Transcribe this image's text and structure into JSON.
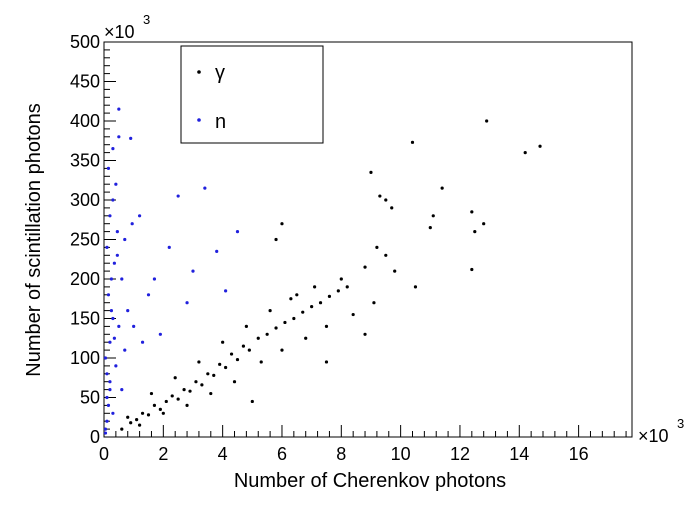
{
  "chart_data": {
    "type": "scatter",
    "xlabel": "Number of Cherenkov photons",
    "ylabel": "Number of scintillation photons",
    "x_multiplier": "×10",
    "x_multiplier_exp": "3",
    "y_multiplier": "×10",
    "y_multiplier_exp": "3",
    "xlim": [
      0,
      17.8
    ],
    "ylim": [
      0,
      500
    ],
    "x_ticks": [
      0,
      2,
      4,
      6,
      8,
      10,
      12,
      14,
      16
    ],
    "y_ticks": [
      0,
      50,
      100,
      150,
      200,
      250,
      300,
      350,
      400,
      450,
      500
    ],
    "legend_position": "top-left",
    "grid": false,
    "series": [
      {
        "name": "γ",
        "color": "#000000",
        "values": [
          [
            0.6,
            10
          ],
          [
            0.9,
            18
          ],
          [
            1.1,
            22
          ],
          [
            1.3,
            30
          ],
          [
            1.5,
            28
          ],
          [
            1.7,
            40
          ],
          [
            1.9,
            35
          ],
          [
            2.1,
            45
          ],
          [
            2.3,
            52
          ],
          [
            2.5,
            48
          ],
          [
            2.7,
            60
          ],
          [
            2.9,
            58
          ],
          [
            3.1,
            70
          ],
          [
            3.3,
            66
          ],
          [
            3.5,
            80
          ],
          [
            3.7,
            78
          ],
          [
            3.9,
            92
          ],
          [
            4.1,
            88
          ],
          [
            4.3,
            105
          ],
          [
            4.5,
            98
          ],
          [
            4.7,
            115
          ],
          [
            4.9,
            110
          ],
          [
            5.2,
            125
          ],
          [
            5.5,
            130
          ],
          [
            5.8,
            138
          ],
          [
            6.1,
            145
          ],
          [
            6.4,
            150
          ],
          [
            6.7,
            158
          ],
          [
            7.0,
            165
          ],
          [
            7.3,
            170
          ],
          [
            7.6,
            178
          ],
          [
            7.9,
            185
          ],
          [
            8.2,
            190
          ],
          [
            0.8,
            25
          ],
          [
            1.2,
            15
          ],
          [
            1.6,
            55
          ],
          [
            2.0,
            30
          ],
          [
            2.4,
            75
          ],
          [
            2.8,
            40
          ],
          [
            3.2,
            95
          ],
          [
            3.6,
            55
          ],
          [
            4.0,
            120
          ],
          [
            4.4,
            70
          ],
          [
            4.8,
            140
          ],
          [
            5.3,
            95
          ],
          [
            5.6,
            160
          ],
          [
            6.0,
            110
          ],
          [
            6.3,
            175
          ],
          [
            6.8,
            125
          ],
          [
            7.1,
            190
          ],
          [
            7.5,
            140
          ],
          [
            8.0,
            200
          ],
          [
            8.4,
            155
          ],
          [
            8.8,
            215
          ],
          [
            9.1,
            170
          ],
          [
            9.5,
            230
          ],
          [
            9.8,
            210
          ],
          [
            10.5,
            190
          ],
          [
            9.0,
            335
          ],
          [
            9.3,
            305
          ],
          [
            9.5,
            300
          ],
          [
            9.7,
            290
          ],
          [
            10.4,
            373
          ],
          [
            11.4,
            315
          ],
          [
            11.1,
            280
          ],
          [
            11.0,
            265
          ],
          [
            12.4,
            285
          ],
          [
            12.5,
            260
          ],
          [
            12.8,
            270
          ],
          [
            12.9,
            400
          ],
          [
            14.2,
            360
          ],
          [
            14.7,
            368
          ],
          [
            12.4,
            212
          ],
          [
            5.0,
            45
          ],
          [
            7.5,
            95
          ],
          [
            6.5,
            180
          ],
          [
            5.8,
            250
          ],
          [
            6.0,
            270
          ],
          [
            8.8,
            130
          ],
          [
            9.2,
            240
          ]
        ]
      },
      {
        "name": "n",
        "color": "#2020dd",
        "values": [
          [
            0.05,
            5
          ],
          [
            0.1,
            20
          ],
          [
            0.15,
            40
          ],
          [
            0.2,
            60
          ],
          [
            0.1,
            80
          ],
          [
            0.05,
            100
          ],
          [
            0.2,
            120
          ],
          [
            0.3,
            150
          ],
          [
            0.15,
            180
          ],
          [
            0.25,
            200
          ],
          [
            0.35,
            220
          ],
          [
            0.1,
            240
          ],
          [
            0.45,
            260
          ],
          [
            0.2,
            280
          ],
          [
            0.3,
            300
          ],
          [
            0.4,
            320
          ],
          [
            0.15,
            340
          ],
          [
            0.3,
            365
          ],
          [
            0.5,
            415
          ],
          [
            0.5,
            380
          ],
          [
            0.9,
            378
          ],
          [
            0.95,
            270
          ],
          [
            1.2,
            280
          ],
          [
            0.6,
            200
          ],
          [
            0.8,
            160
          ],
          [
            1.0,
            140
          ],
          [
            1.3,
            120
          ],
          [
            0.7,
            110
          ],
          [
            1.5,
            180
          ],
          [
            1.9,
            130
          ],
          [
            2.2,
            240
          ],
          [
            2.5,
            305
          ],
          [
            3.0,
            210
          ],
          [
            3.4,
            315
          ],
          [
            3.8,
            235
          ],
          [
            4.1,
            185
          ],
          [
            4.5,
            260
          ],
          [
            2.8,
            170
          ],
          [
            1.7,
            200
          ],
          [
            0.4,
            90
          ],
          [
            0.2,
            70
          ],
          [
            0.1,
            50
          ],
          [
            0.3,
            30
          ],
          [
            0.05,
            10
          ],
          [
            0.6,
            60
          ],
          [
            0.5,
            140
          ],
          [
            0.45,
            230
          ],
          [
            0.25,
            160
          ],
          [
            0.35,
            125
          ],
          [
            0.7,
            250
          ]
        ]
      }
    ]
  }
}
